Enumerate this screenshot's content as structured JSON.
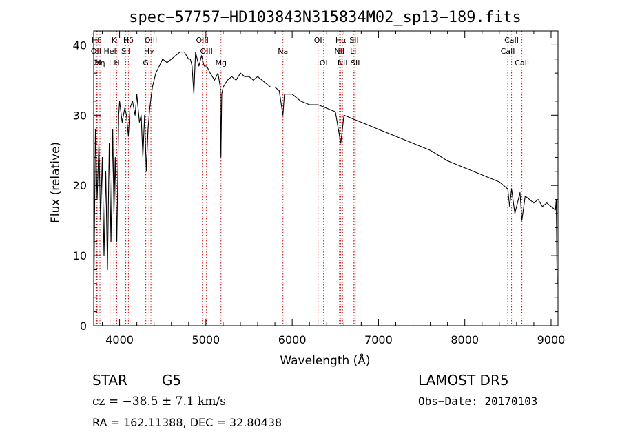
{
  "chart_data": {
    "type": "line",
    "title": "spec−57757−HD103843N315834M02_sp13−189.fits",
    "xlabel": "Wavelength (Å)",
    "ylabel": "Flux (relative)",
    "xlim": [
      3700,
      9080
    ],
    "ylim": [
      0,
      42
    ],
    "xticks": [
      4000,
      5000,
      6000,
      7000,
      8000,
      9000
    ],
    "yticks": [
      0,
      10,
      20,
      30,
      40
    ],
    "grid": false,
    "line_color": "#000000",
    "marker_color": "#cc0000",
    "series": [
      {
        "x": [
          3700,
          3720,
          3740,
          3760,
          3780,
          3800,
          3820,
          3840,
          3860,
          3880,
          3900,
          3920,
          3935,
          3950,
          3968,
          3990,
          4000,
          4030,
          4060,
          4080,
          4102,
          4120,
          4150,
          4180,
          4200,
          4230,
          4250,
          4270,
          4290,
          4310,
          4330,
          4350,
          4380,
          4420,
          4460,
          4500,
          4550,
          4600,
          4650,
          4700,
          4750,
          4800,
          4820,
          4840,
          4861,
          4880,
          4900,
          4920,
          4950,
          4980,
          5010,
          5050,
          5100,
          5140,
          5167,
          5174,
          5184,
          5200,
          5250,
          5300,
          5350,
          5400,
          5450,
          5500,
          5550,
          5600,
          5650,
          5700,
          5750,
          5800,
          5850,
          5893,
          5910,
          5950,
          6000,
          6100,
          6200,
          6300,
          6400,
          6500,
          6563,
          6600,
          6700,
          6800,
          6900,
          7000,
          7200,
          7400,
          7600,
          7800,
          8000,
          8200,
          8400,
          8498,
          8520,
          8542,
          8580,
          8640,
          8662,
          8700,
          8750,
          8800,
          8850,
          8900,
          8950,
          9000,
          9050,
          9060,
          9070
        ],
        "y": [
          2,
          28,
          18,
          26,
          15,
          24,
          10,
          22,
          8,
          26,
          12,
          28,
          16,
          24,
          12,
          30,
          32,
          29,
          31,
          30,
          27,
          31,
          32,
          30,
          33,
          29,
          30,
          24,
          30,
          22,
          28,
          31,
          34,
          36,
          37,
          38,
          37.5,
          38,
          38.5,
          39,
          39,
          38,
          38,
          37,
          33,
          39,
          38,
          37,
          38.5,
          37,
          37,
          36,
          35,
          36,
          34,
          24,
          33,
          34,
          35,
          35.5,
          35,
          36,
          35.5,
          35.5,
          35,
          35.5,
          35,
          34.5,
          34,
          34,
          33.5,
          30,
          33,
          33,
          33,
          32,
          31.5,
          31.5,
          31,
          30.5,
          26,
          30,
          29.5,
          29,
          28.5,
          28,
          27,
          26,
          25,
          23.5,
          22.5,
          21.5,
          20.5,
          19.5,
          17,
          19.5,
          16,
          19,
          15,
          18.5,
          18,
          17.5,
          18,
          17,
          17.5,
          17,
          16.5,
          18,
          6
        ]
      }
    ],
    "line_markers": [
      {
        "wave": 3734,
        "text": "Hδ",
        "row": 1
      },
      {
        "wave": 3727,
        "text": "OII",
        "row": 2
      },
      {
        "wave": 3740,
        "text": "OI",
        "row": 3
      },
      {
        "wave": 3772,
        "text": "Hη",
        "row": 3
      },
      {
        "wave": 3889,
        "text": "HeI",
        "row": 2
      },
      {
        "wave": 3934,
        "text": "K",
        "row": 1
      },
      {
        "wave": 3968,
        "text": "H",
        "row": 3
      },
      {
        "wave": 4072,
        "text": "SII",
        "row": 2
      },
      {
        "wave": 4102,
        "text": "Hδ",
        "row": 1
      },
      {
        "wave": 4304,
        "text": "G",
        "row": 3
      },
      {
        "wave": 4341,
        "text": "Hγ",
        "row": 2
      },
      {
        "wave": 4363,
        "text": "OIII",
        "row": 1
      },
      {
        "wave": 4861,
        "text": "",
        "row": 0
      },
      {
        "wave": 4959,
        "text": "OIII",
        "row": 1
      },
      {
        "wave": 5007,
        "text": "OIII",
        "row": 2
      },
      {
        "wave": 5175,
        "text": "Mg",
        "row": 3
      },
      {
        "wave": 5893,
        "text": "Na",
        "row": 2
      },
      {
        "wave": 6300,
        "text": "OI",
        "row": 1
      },
      {
        "wave": 6364,
        "text": "OI",
        "row": 3
      },
      {
        "wave": 6548,
        "text": "NII",
        "row": 2
      },
      {
        "wave": 6563,
        "text": "Hα",
        "row": 1
      },
      {
        "wave": 6583,
        "text": "NII",
        "row": 3
      },
      {
        "wave": 6707,
        "text": "Li",
        "row": 2
      },
      {
        "wave": 6717,
        "text": "SII",
        "row": 1
      },
      {
        "wave": 6731,
        "text": "SII",
        "row": 3
      },
      {
        "wave": 8498,
        "text": "CaII",
        "row": 2
      },
      {
        "wave": 8542,
        "text": "CaII",
        "row": 1
      },
      {
        "wave": 8662,
        "text": "CaII",
        "row": 3
      }
    ]
  },
  "info": {
    "object_type": "STAR",
    "subclass": "G5",
    "survey": "LAMOST DR5",
    "cz": "cz = −38.5 ± 7.1 km/s",
    "obs_date": "Obs−Date: 20170103",
    "coords": "RA = 162.11388, DEC =  32.80438"
  }
}
